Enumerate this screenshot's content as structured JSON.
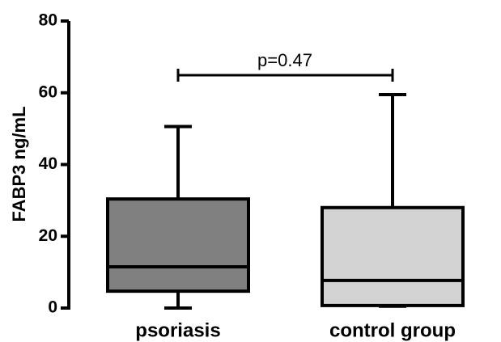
{
  "chart_data": {
    "type": "box",
    "y_label": "FABP3 ng/mL",
    "categories": [
      "psoriasis",
      "control group"
    ],
    "min": [
      0,
      0.5
    ],
    "q1": [
      4.7,
      0.7
    ],
    "median": [
      11.5,
      7.7
    ],
    "q3": [
      30.4,
      28
    ],
    "max": [
      50.6,
      59.5
    ],
    "colors": [
      "#808080",
      "#d3d3d3"
    ],
    "ylim": [
      0,
      80
    ],
    "yticks": [
      0,
      20,
      40,
      60,
      80
    ],
    "annotation": "p=0.47"
  }
}
